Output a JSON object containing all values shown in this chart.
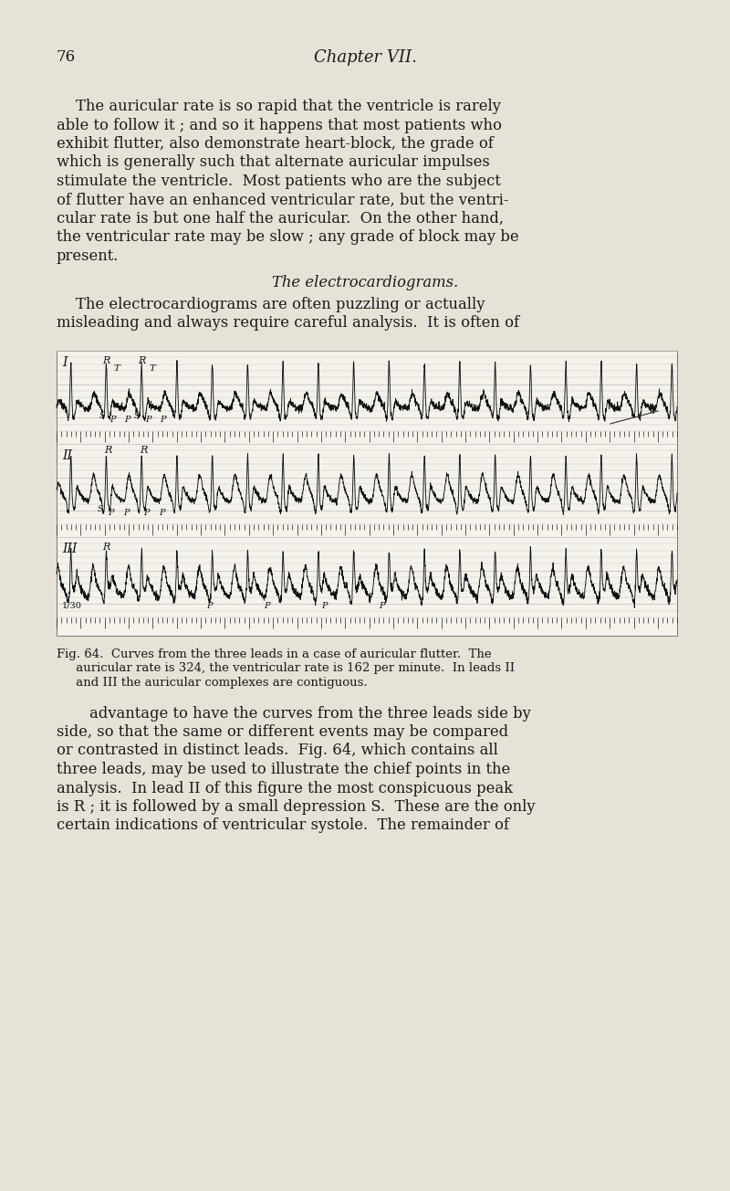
{
  "bg_color": "#e6e2d8",
  "text_color": "#1a1a1a",
  "page_number": "76",
  "chapter_title": "Chapter VII.",
  "para1_lines": [
    "    The auricular rate is so rapid that the ventricle is rarely",
    "able to follow it ; and so it happens that most patients who",
    "exhibit flutter, also demonstrate heart-block, the grade of",
    "which is generally such that alternate auricular impulses",
    "stimulate the ventricle.  Most patients who are the subject",
    "of flutter have an enhanced ventricular rate, but the ventri-",
    "cular rate is but one half the auricular.  On the other hand,",
    "the ventricular rate may be slow ; any grade of block may be",
    "present."
  ],
  "section_title": "The electrocardiograms.",
  "para2_lines": [
    "    The electrocardiograms are often puzzling or actually",
    "misleading and always require careful analysis.  It is often of"
  ],
  "cap_line1": "Fig. 64.  Curves from the three leads in a case of auricular flutter.  The",
  "cap_line2": "     auricular rate is 324, the ventricular rate is 162 per minute.  In leads II",
  "cap_line3": "     and III the auricular complexes are contiguous.",
  "para3_lines": [
    "advantage to have the curves from the three leads side by",
    "side, so that the same or different events may be compared",
    "or contrasted in distinct leads.  Fig. 64, which contains all",
    "three leads, may be used to illustrate the chief points in the",
    "analysis.  In lead II of this figure the most conspicuous peak",
    "is R ; it is followed by a small depression S.  These are the only",
    "certain indications of ventricular systole.  The remainder of"
  ],
  "ecg_bg": "#f5f2ec",
  "ecg_line_color": "#111111",
  "ecg_grid_color": "#bbbbbb"
}
